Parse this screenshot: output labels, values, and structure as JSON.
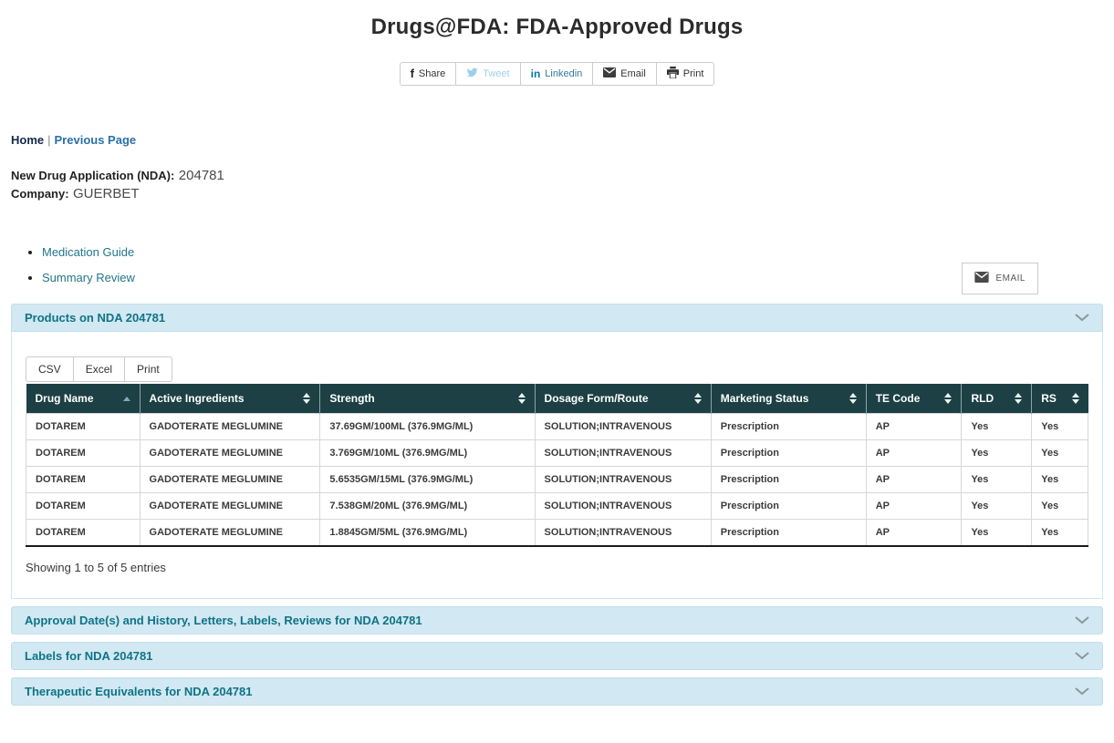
{
  "page_title": "Drugs@FDA: FDA-Approved Drugs",
  "share_bar": {
    "buttons": [
      {
        "label": "Share",
        "icon": "facebook-icon"
      },
      {
        "label": "Tweet",
        "icon": "twitter-icon"
      },
      {
        "label": "Linkedin",
        "icon": "linkedin-icon"
      },
      {
        "label": "Email",
        "icon": "email-icon"
      },
      {
        "label": "Print",
        "icon": "print-icon"
      }
    ]
  },
  "breadcrumb": {
    "home_label": "Home",
    "separator": "|",
    "previous_label": "Previous Page"
  },
  "application_info": {
    "nda_label": "New Drug Application (NDA):",
    "nda_value": "204781",
    "company_label": "Company:",
    "company_value": "GUERBET"
  },
  "email_button": {
    "label": "EMAIL"
  },
  "document_links": [
    {
      "label": "Medication Guide"
    },
    {
      "label": "Summary Review"
    }
  ],
  "products_panel": {
    "title": "Products on NDA 204781",
    "export_buttons": [
      {
        "label": "CSV"
      },
      {
        "label": "Excel"
      },
      {
        "label": "Print"
      }
    ],
    "table": {
      "columns": [
        {
          "label": "Drug Name",
          "sort": "asc"
        },
        {
          "label": "Active Ingredients",
          "sort": "both"
        },
        {
          "label": "Strength",
          "sort": "both"
        },
        {
          "label": "Dosage Form/Route",
          "sort": "both"
        },
        {
          "label": "Marketing Status",
          "sort": "both"
        },
        {
          "label": "TE Code",
          "sort": "both"
        },
        {
          "label": "RLD",
          "sort": "both"
        },
        {
          "label": "RS",
          "sort": "both"
        }
      ],
      "rows": [
        [
          "DOTAREM",
          "GADOTERATE MEGLUMINE",
          "37.69GM/100ML (376.9MG/ML)",
          "SOLUTION;INTRAVENOUS",
          "Prescription",
          "AP",
          "Yes",
          "Yes"
        ],
        [
          "DOTAREM",
          "GADOTERATE MEGLUMINE",
          "3.769GM/10ML (376.9MG/ML)",
          "SOLUTION;INTRAVENOUS",
          "Prescription",
          "AP",
          "Yes",
          "Yes"
        ],
        [
          "DOTAREM",
          "GADOTERATE MEGLUMINE",
          "5.6535GM/15ML (376.9MG/ML)",
          "SOLUTION;INTRAVENOUS",
          "Prescription",
          "AP",
          "Yes",
          "Yes"
        ],
        [
          "DOTAREM",
          "GADOTERATE MEGLUMINE",
          "7.538GM/20ML (376.9MG/ML)",
          "SOLUTION;INTRAVENOUS",
          "Prescription",
          "AP",
          "Yes",
          "Yes"
        ],
        [
          "DOTAREM",
          "GADOTERATE MEGLUMINE",
          "1.8845GM/5ML (376.9MG/ML)",
          "SOLUTION;INTRAVENOUS",
          "Prescription",
          "AP",
          "Yes",
          "Yes"
        ]
      ]
    },
    "summary": "Showing 1 to 5 of 5 entries"
  },
  "collapsed_sections": [
    {
      "title": "Approval Date(s) and History, Letters, Labels, Reviews for NDA 204781"
    },
    {
      "title": "Labels for NDA 204781"
    },
    {
      "title": "Therapeutic Equivalents for NDA 204781"
    }
  ],
  "colors": {
    "accent_teal": "#0e7486",
    "table_header_bg": "#1d4044",
    "accordion_bg": "#d2e8f2",
    "link_blue": "#2a70a8",
    "link_navy": "#14284b",
    "twitter_blue": "#9bcfeb",
    "linkedin_blue": "#0e76a8"
  }
}
